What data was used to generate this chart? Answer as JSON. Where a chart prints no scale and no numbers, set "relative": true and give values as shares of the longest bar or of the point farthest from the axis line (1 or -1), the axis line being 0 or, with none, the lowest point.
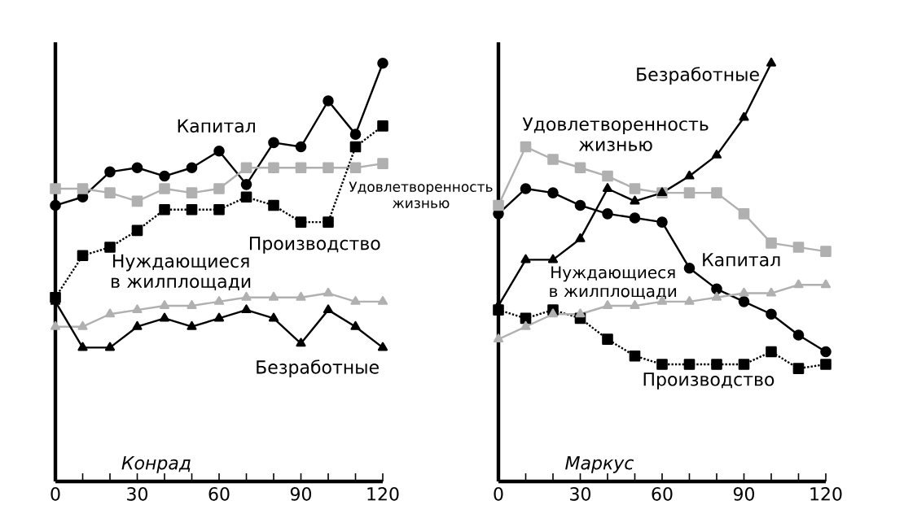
{
  "chart_data": [
    {
      "type": "line",
      "title": "Конрад",
      "relative": true,
      "x": [
        0,
        10,
        20,
        30,
        40,
        50,
        60,
        70,
        80,
        90,
        100,
        110,
        120
      ],
      "xlim": [
        0,
        120
      ],
      "xticks": [
        0,
        {
          "value": 10,
          "label": null
        },
        {
          "value": 20,
          "label": null
        },
        30,
        {
          "value": 40,
          "label": null
        },
        {
          "value": 50,
          "label": null
        },
        60,
        {
          "value": 70,
          "label": null
        },
        {
          "value": 80,
          "label": null
        },
        90,
        {
          "value": 100,
          "label": null
        },
        {
          "value": 110,
          "label": null
        },
        120
      ],
      "tick_labels": "x",
      "grid": false,
      "legend": false,
      "series": [
        {
          "name": "Капитал",
          "color": "#000000",
          "marker": "circle",
          "line_style": "solid",
          "values": [
            0.66,
            0.68,
            0.74,
            0.75,
            0.73,
            0.75,
            0.79,
            0.71,
            0.81,
            0.8,
            0.91,
            0.83,
            1
          ]
        },
        {
          "name": "Удовлетворенность жизнью",
          "color": "#b0b0b0",
          "marker": "square",
          "line_style": "solid",
          "values": [
            0.7,
            0.7,
            0.69,
            0.67,
            0.7,
            0.69,
            0.7,
            0.75,
            0.75,
            0.75,
            0.75,
            0.75,
            0.76
          ]
        },
        {
          "name": "Производство",
          "color": "#000000",
          "marker": "square",
          "line_style": "dotted",
          "values": [
            0.44,
            0.54,
            0.56,
            0.6,
            0.65,
            0.65,
            0.65,
            0.68,
            0.66,
            0.62,
            0.62,
            0.8,
            0.85
          ]
        },
        {
          "name": "Нуждающиеся в жилплощади",
          "color": "#b0b0b0",
          "marker": "triangle",
          "line_style": "solid",
          "values": [
            0.37,
            0.37,
            0.4,
            0.41,
            0.42,
            0.42,
            0.43,
            0.44,
            0.44,
            0.44,
            0.45,
            0.43,
            0.43
          ]
        },
        {
          "name": "Безработные",
          "color": "#000000",
          "marker": "triangle",
          "line_style": "solid",
          "values": [
            0.43,
            0.32,
            0.32,
            0.37,
            0.39,
            0.37,
            0.39,
            0.41,
            0.39,
            0.33,
            0.41,
            0.37,
            0.32
          ]
        }
      ]
    },
    {
      "type": "line",
      "title": "Маркус",
      "relative": true,
      "x": [
        0,
        10,
        20,
        30,
        40,
        50,
        60,
        70,
        80,
        90,
        100,
        110,
        120
      ],
      "xlim": [
        0,
        120
      ],
      "xticks": [
        0,
        {
          "value": 10,
          "label": null
        },
        {
          "value": 20,
          "label": null
        },
        30,
        {
          "value": 40,
          "label": null
        },
        {
          "value": 50,
          "label": null
        },
        60,
        {
          "value": 70,
          "label": null
        },
        {
          "value": 80,
          "label": null
        },
        90,
        {
          "value": 100,
          "label": null
        },
        {
          "value": 110,
          "label": null
        },
        120
      ],
      "tick_labels": "x",
      "grid": false,
      "legend": false,
      "series": [
        {
          "name": "Капитал",
          "color": "#000000",
          "marker": "circle",
          "line_style": "solid",
          "values": [
            0.64,
            0.7,
            0.69,
            0.66,
            0.64,
            0.63,
            0.62,
            0.51,
            0.46,
            0.43,
            0.4,
            0.35,
            0.31
          ]
        },
        {
          "name": "Удовлетворенность жизнью",
          "color": "#b0b0b0",
          "marker": "square",
          "line_style": "solid",
          "values": [
            0.66,
            0.8,
            0.77,
            0.75,
            0.73,
            0.7,
            0.69,
            0.69,
            0.69,
            0.64,
            0.57,
            0.56,
            0.55
          ]
        },
        {
          "name": "Производство",
          "color": "#000000",
          "marker": "square",
          "line_style": "dotted",
          "values": [
            0.41,
            0.39,
            0.41,
            0.39,
            0.34,
            0.3,
            0.28,
            0.28,
            0.28,
            0.28,
            0.31,
            0.27,
            0.28
          ]
        },
        {
          "name": "Нуждающиеся в жилплощади",
          "color": "#b0b0b0",
          "marker": "triangle",
          "line_style": "solid",
          "values": [
            0.34,
            0.37,
            0.4,
            0.4,
            0.42,
            0.42,
            0.43,
            0.43,
            0.44,
            0.45,
            0.45,
            0.47,
            0.47
          ]
        },
        {
          "name": "Безработные",
          "color": "#000000",
          "marker": "triangle",
          "line_style": "solid",
          "values": [
            0.42,
            0.53,
            0.53,
            0.58,
            0.7,
            0.67,
            0.69,
            0.73,
            0.78,
            0.87,
            1,
            null,
            null
          ]
        }
      ]
    }
  ]
}
